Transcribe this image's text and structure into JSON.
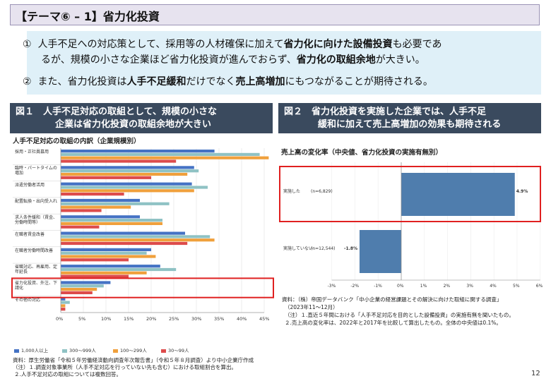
{
  "header": {
    "title": "【テーマ⑥ – 1】省力化投資"
  },
  "summary": {
    "item1": {
      "num": "①",
      "line1_a": "人手不足への対応策として、採用等の人材確保に加えて",
      "line1_b": "省力化に向けた設備投資",
      "line1_c": "も必要であ",
      "line2_a": "るが、規模の小さな企業ほど省力化投資が進んでおらず、",
      "line2_b": "省力化の取組余地",
      "line2_c": "が大きい。"
    },
    "item2": {
      "num": "②",
      "line_a": "また、省力化投資は",
      "line_b": "人手不足緩和",
      "line_c": "だけでなく",
      "line_d": "売上高増加",
      "line_e": "にもつながることが期待される。"
    }
  },
  "figure1": {
    "head_line1": "図１　人手不足対応の取組として、規模の小さな",
    "head_line2": "企業は省力化投資の取組余地が大きい",
    "subtitle": "人手不足対応の取組の内訳（企業規模別）",
    "notes": [
      "資料：厚生労働省「令和５年労働経済動向調査年次報告書」（令和５年８月調査）より中小企業庁作成",
      "（注）１.調査対象事業所（人手不足対応を行っていない先も含む）における取組割合を算出。",
      "２.人手不足対応の取組については複数回答。"
    ]
  },
  "figure2": {
    "head_line1": "図２　省力化投資を実施した企業では、人手不足",
    "head_line2": "緩和に加えて売上高増加の効果も期待される",
    "subtitle": "売上高の変化率（中央値、省力化投資の実施有無別）",
    "notes": [
      "資料：（株）帝国データバンク「中小企業の経営課題とその解決に向けた取組に関する調査」",
      "（2023年11～12月）",
      "（注）１.直近５年間における「人手不足対応を目的とした設備投資」の実施有無を聞いたもの。",
      "２.売上高の変化率は、2022年と2017年を比較して算出したもの。全体の中央値は0.1%。"
    ]
  },
  "page_number": "12",
  "colors": {
    "s1": "#4472c4",
    "s2": "#8fc2c4",
    "s3": "#f0a03c",
    "s4": "#dd4b4b",
    "bar2": "#4f7dad",
    "highlight": "#e02020"
  },
  "chart_data": [
    {
      "type": "bar",
      "orientation": "horizontal",
      "categories": [
        "採用・正社員募用",
        "臨時・パートタイムの増加",
        "派遣労働者活用",
        "配置転換・出向受入れ",
        "求人条件緩和（賃金、労働時間等）",
        "在職者賃金改善",
        "在職者労働時間改善",
        "省職対応、再雇用、定年延長",
        "省力化投資、外注、下請化",
        "その他の対応"
      ],
      "xlim": [
        0,
        45
      ],
      "xticks": [
        "0%",
        "5%",
        "10%",
        "15%",
        "20%",
        "25%",
        "30%",
        "35%",
        "40%",
        "45%"
      ],
      "series": [
        {
          "name": "1,000人以上",
          "values": [
            34,
            29.5,
            29,
            17.5,
            17.5,
            27.5,
            20,
            22,
            11,
            1
          ]
        },
        {
          "name": "300～999人",
          "values": [
            44,
            30.5,
            32.5,
            24,
            22.5,
            33,
            19,
            25.5,
            9.5,
            2
          ]
        },
        {
          "name": "100～299人",
          "values": [
            46,
            28,
            29.5,
            15.5,
            22.5,
            34,
            21,
            19,
            8,
            1
          ]
        },
        {
          "name": "30～99人",
          "values": [
            25.5,
            20,
            14,
            9,
            8.5,
            28,
            15,
            15,
            7,
            1
          ]
        }
      ],
      "highlight_category": "省力化投資、外注、下請化"
    },
    {
      "type": "bar",
      "orientation": "horizontal",
      "categories": [
        "実施した",
        "実施していない"
      ],
      "category_counts": [
        "(n=6,829)",
        "(n=12,544)"
      ],
      "values": [
        4.9,
        -1.8
      ],
      "value_labels": [
        "4.9%",
        "-1.8%"
      ],
      "xlim": [
        -3,
        6
      ],
      "xticks": [
        "-3%",
        "-2%",
        "-1%",
        "0%",
        "1%",
        "2%",
        "3%",
        "4%",
        "5%",
        "6%"
      ],
      "highlight_category": "実施した"
    }
  ]
}
